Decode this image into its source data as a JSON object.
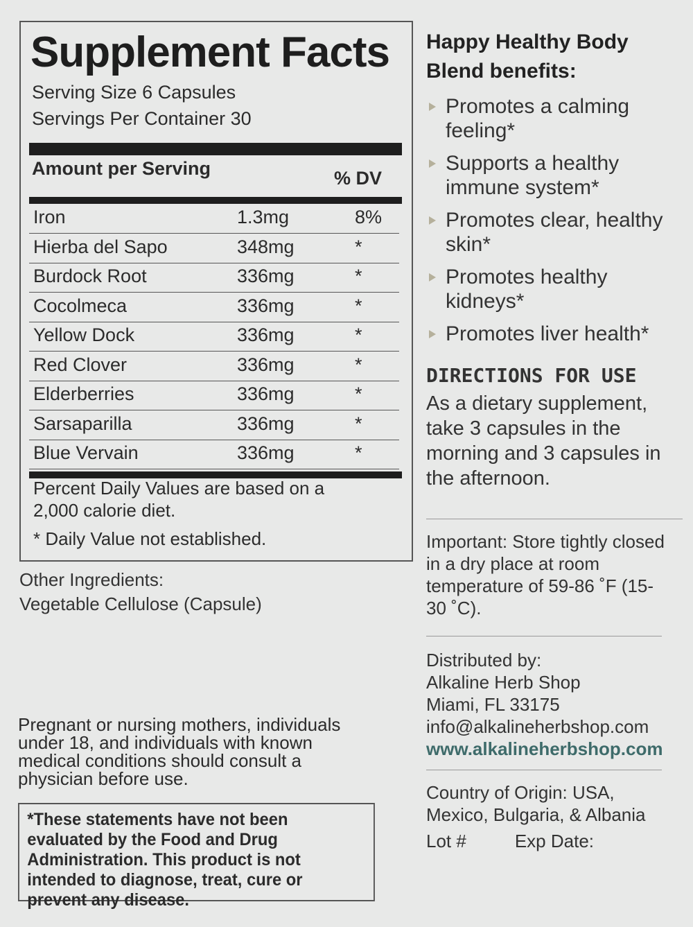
{
  "facts": {
    "title": "Supplement Facts",
    "serving_size": "Serving Size 6 Capsules",
    "servings": "Servings Per Container 30",
    "amount_header": "Amount per Serving",
    "dv_header": "% DV",
    "rows": [
      {
        "name": "Iron",
        "amount": "1.3mg",
        "dv": "8%"
      },
      {
        "name": "Hierba del Sapo",
        "amount": "348mg",
        "dv": "*"
      },
      {
        "name": "Burdock Root",
        "amount": "336mg",
        "dv": "*"
      },
      {
        "name": "Cocolmeca",
        "amount": "336mg",
        "dv": "*"
      },
      {
        "name": "Yellow Dock",
        "amount": "336mg",
        "dv": "*"
      },
      {
        "name": "Red Clover",
        "amount": "336mg",
        "dv": "*"
      },
      {
        "name": "Elderberries",
        "amount": "336mg",
        "dv": "*"
      },
      {
        "name": "Sarsaparilla",
        "amount": "336mg",
        "dv": "*"
      },
      {
        "name": "Blue Vervain",
        "amount": "336mg",
        "dv": "*"
      }
    ],
    "note1": "Percent Daily Values are based on a 2,000 calorie diet.",
    "note2": "* Daily Value not established."
  },
  "other": {
    "label": "Other Ingredients:",
    "value": "Vegetable Cellulose (Capsule)"
  },
  "warning": "Pregnant or nursing mothers, individuals under 18, and individuals with known medical conditions should consult a physician before use.",
  "disclaimer": "*These statements have not been evaluated by the Food and Drug Administration. This product is not intended to diagnose, treat, cure or prevent any disease.",
  "right": {
    "heading": "Happy Healthy Body Blend benefits:",
    "benefits": [
      "Promotes a calming feeling*",
      "Supports a healthy immune system*",
      "Promotes clear, healthy skin*",
      "Promotes healthy kidneys*",
      "Promotes liver health*"
    ],
    "directions_title": "DIRECTIONS FOR USE",
    "directions": "As a dietary supplement, take 3 capsules in the morning and 3 capsules in the afternoon.",
    "storage": "Important: Store tightly closed in a dry place at room temperature of 59-86 ˚F (15-30 ˚C).",
    "dist_label": "Distributed by:",
    "dist_name": "Alkaline Herb Shop",
    "dist_city": "Miami, FL 33175",
    "email": "info@alkalineherbshop.com",
    "website": "www.alkalineherbshop.com",
    "origin": "Country of Origin: USA, Mexico, Bulgaria, & Albania",
    "lot": "Lot #",
    "exp": "Exp Date:"
  }
}
